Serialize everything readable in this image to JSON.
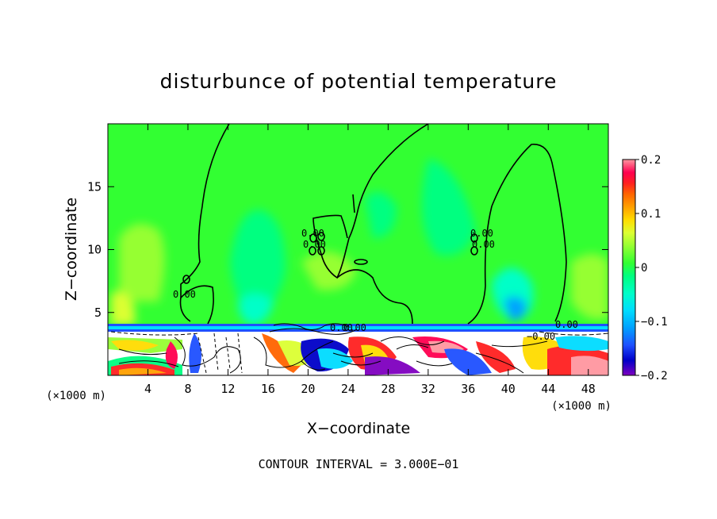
{
  "chart_data": {
    "type": "heatmap",
    "title": "disturbunce of potential temperature",
    "xlabel": "X−coordinate",
    "ylabel": "Z−coordinate",
    "x_unit_left": "(×1000 m)",
    "x_unit_right": "(×1000 m)",
    "xlim": [
      0,
      50
    ],
    "ylim": [
      0,
      20
    ],
    "x_ticks": [
      4,
      8,
      12,
      16,
      20,
      24,
      28,
      32,
      36,
      40,
      44,
      48
    ],
    "y_ticks": [
      5,
      10,
      15
    ],
    "colorbar": {
      "vmin": -0.2,
      "vmax": 0.2,
      "tick_values": [
        0.2,
        0.1,
        0,
        -0.1,
        -0.2
      ],
      "tick_labels": [
        "0.2",
        "0.1",
        "0",
        "−0.1",
        "−0.2"
      ],
      "colors": [
        "#7f00bf",
        "#0000c8",
        "#1e50ff",
        "#00a0ff",
        "#00dcff",
        "#00ffc8",
        "#00ff80",
        "#32ff32",
        "#96ff32",
        "#dcff32",
        "#ffdc00",
        "#ffa000",
        "#ff6400",
        "#ff2020",
        "#ff0050",
        "#ff96a0"
      ]
    },
    "contour_interval_text": "CONTOUR INTERVAL = 3.000E−01",
    "contour_labels": [
      "0.00",
      "0.00",
      "0.00",
      "0.00",
      "0.00",
      "0.00",
      "0.00",
      "0.00",
      "−0.00"
    ]
  }
}
